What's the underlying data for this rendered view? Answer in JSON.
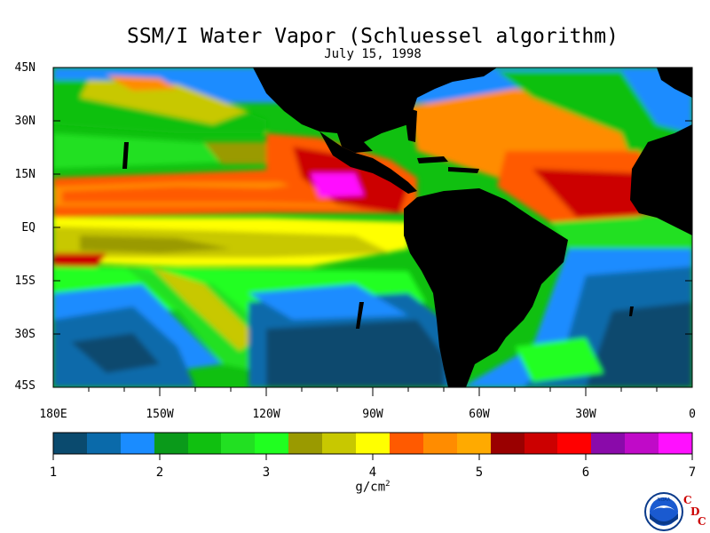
{
  "map": {
    "title": "SSM/I Water Vapor (Schluessel algorithm)",
    "date": "July 15, 1998",
    "lat_labels": [
      "45N",
      "30N",
      "15N",
      "EQ",
      "15S",
      "30S",
      "45S"
    ],
    "lon_labels": [
      "180E",
      "150W",
      "120W",
      "90W",
      "60W",
      "30W",
      "0"
    ],
    "units_base": "g/cm",
    "units_exp": "2",
    "land_color": "#000000"
  },
  "colorbar": {
    "ticks": [
      "1",
      "2",
      "3",
      "4",
      "5",
      "6",
      "7"
    ],
    "colors": [
      "#0a4a6e",
      "#0a6aaa",
      "#1a8cff",
      "#0a9a1a",
      "#10c010",
      "#22e022",
      "#20ff20",
      "#9a9a00",
      "#c8c800",
      "#ffff00",
      "#ff5a00",
      "#ff8c00",
      "#ffaa00",
      "#9a0000",
      "#cc0000",
      "#ff0000",
      "#8a0aaa",
      "#c00ac8",
      "#ff10ff"
    ]
  },
  "logo": {
    "text": "NOAA",
    "letters": [
      "C",
      "D",
      "C"
    ]
  }
}
